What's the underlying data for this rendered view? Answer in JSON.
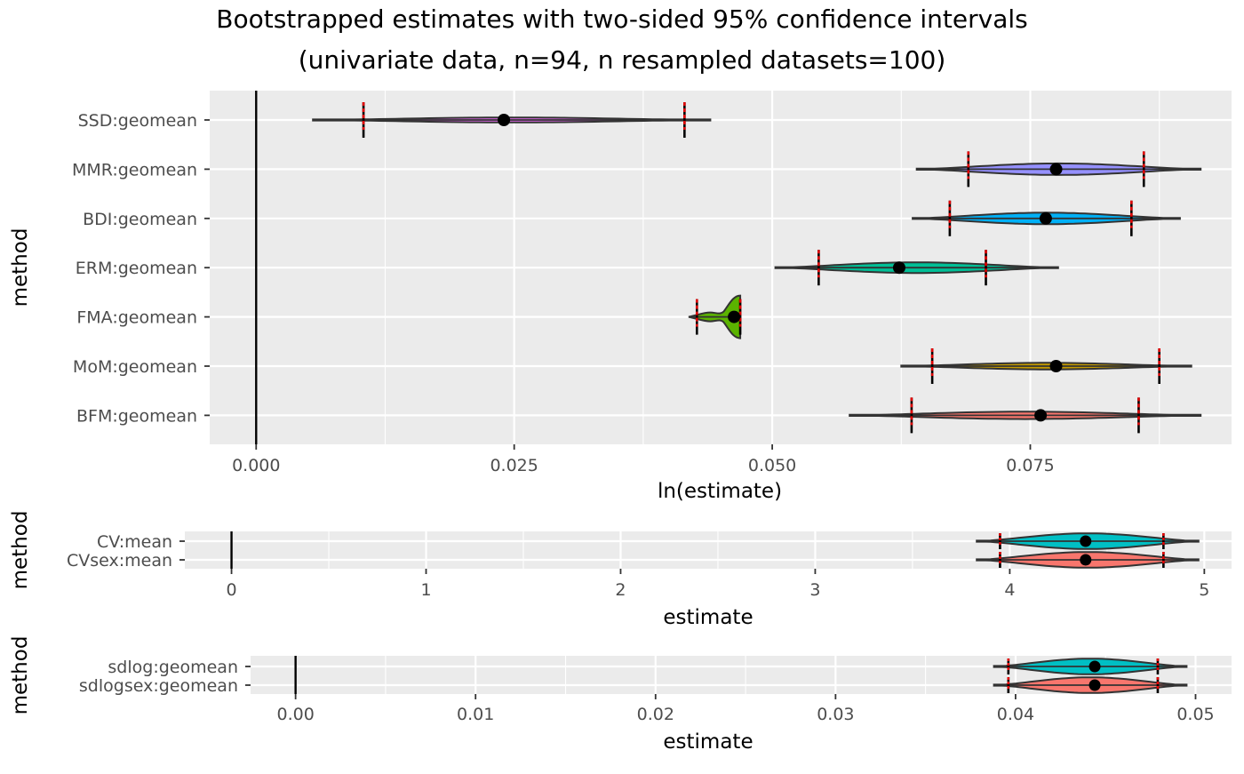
{
  "chart_data": [
    {
      "type": "violin",
      "title": "Bootstrapped estimates with two-sided 95% confidence intervals",
      "subtitle": "(univariate data, n=94, n resampled datasets=100)",
      "xlabel": "ln(estimate)",
      "ylabel": "method",
      "xlim": [
        -0.0045,
        0.0945
      ],
      "x_ticks": [
        0.0,
        0.025,
        0.05,
        0.075
      ],
      "x_tick_labels": [
        "0.000",
        "0.025",
        "0.050",
        "0.075"
      ],
      "reference_line": 0,
      "grid": true,
      "legend": "none",
      "series": [
        {
          "category": "SSD:geomean",
          "min": 0.0055,
          "max": 0.044,
          "point": 0.024,
          "ci_lower": 0.0104,
          "ci_upper": 0.0415,
          "color": "#e76bf3",
          "max_half_width": 0.06
        },
        {
          "category": "MMR:geomean",
          "min": 0.064,
          "max": 0.0915,
          "point": 0.0775,
          "ci_lower": 0.069,
          "ci_upper": 0.086,
          "color": "#9590ff",
          "max_half_width": 0.14
        },
        {
          "category": "BDI:geomean",
          "min": 0.0636,
          "max": 0.0895,
          "point": 0.0765,
          "ci_lower": 0.0672,
          "ci_upper": 0.0848,
          "color": "#00b0f6",
          "max_half_width": 0.14
        },
        {
          "category": "ERM:geomean",
          "min": 0.0503,
          "max": 0.0777,
          "point": 0.0623,
          "ci_lower": 0.0545,
          "ci_upper": 0.0707,
          "color": "#00bf96",
          "max_half_width": 0.13
        },
        {
          "category": "FMA:geomean",
          "min": 0.0419,
          "max": 0.0469,
          "point": 0.0463,
          "ci_lower": 0.0427,
          "ci_upper": 0.0469,
          "color": "#5bb300",
          "max_half_width": 0.4
        },
        {
          "category": "MoM:geomean",
          "min": 0.0625,
          "max": 0.0906,
          "point": 0.0775,
          "ci_lower": 0.0655,
          "ci_upper": 0.0875,
          "color": "#c49a00",
          "max_half_width": 0.08
        },
        {
          "category": "BFM:geomean",
          "min": 0.0575,
          "max": 0.0915,
          "point": 0.076,
          "ci_lower": 0.0635,
          "ci_upper": 0.0855,
          "color": "#f8766d",
          "max_half_width": 0.09
        }
      ]
    },
    {
      "type": "violin",
      "xlabel": "estimate",
      "ylabel": "method",
      "xlim": [
        -0.24,
        5.14
      ],
      "x_ticks": [
        0,
        1,
        2,
        3,
        4,
        5
      ],
      "x_tick_labels": [
        "0",
        "1",
        "2",
        "3",
        "4",
        "5"
      ],
      "reference_line": 0,
      "grid": true,
      "legend": "none",
      "series": [
        {
          "category": "CV:mean",
          "min": 3.83,
          "max": 4.97,
          "point": 4.39,
          "ci_lower": 3.95,
          "ci_upper": 4.79,
          "color": "#00bfc4",
          "max_half_width": 0.42
        },
        {
          "category": "CVsex:mean",
          "min": 3.83,
          "max": 4.97,
          "point": 4.39,
          "ci_lower": 3.95,
          "ci_upper": 4.79,
          "color": "#f8766d",
          "max_half_width": 0.42
        }
      ]
    },
    {
      "type": "violin",
      "xlabel": "estimate",
      "ylabel": "method",
      "xlim": [
        -0.0025,
        0.052
      ],
      "x_ticks": [
        0.0,
        0.01,
        0.02,
        0.03,
        0.04,
        0.05
      ],
      "x_tick_labels": [
        "0.00",
        "0.01",
        "0.02",
        "0.03",
        "0.04",
        "0.05"
      ],
      "reference_line": 0,
      "grid": true,
      "legend": "none",
      "series": [
        {
          "category": "sdlog:geomean",
          "min": 0.0388,
          "max": 0.0495,
          "point": 0.0444,
          "ci_lower": 0.0396,
          "ci_upper": 0.0479,
          "color": "#00bfc4",
          "max_half_width": 0.42
        },
        {
          "category": "sdlogsex:geomean",
          "min": 0.0388,
          "max": 0.0495,
          "point": 0.0444,
          "ci_lower": 0.0396,
          "ci_upper": 0.0479,
          "color": "#f8766d",
          "max_half_width": 0.42
        }
      ]
    }
  ]
}
